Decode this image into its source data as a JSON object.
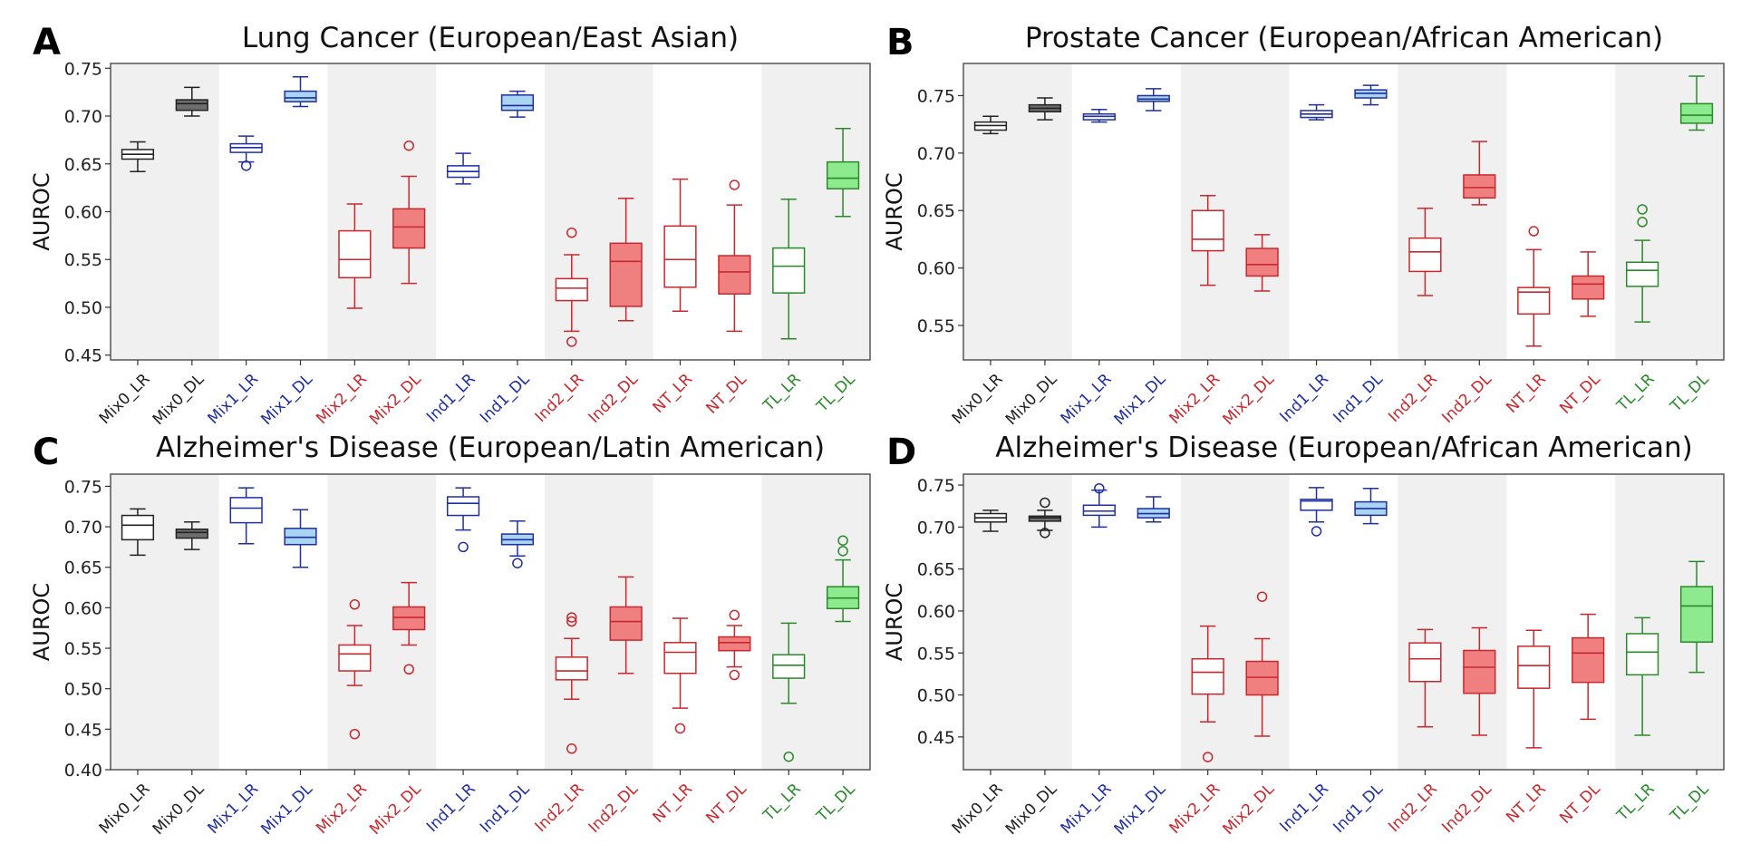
{
  "figure": {
    "ylabel": "AUROC",
    "colors": {
      "band": "#f0f0f0",
      "black": "#222222",
      "black_fill": "#6e6e6e",
      "blue": "#1f2fa0",
      "blue_fill": "#a9d4f3",
      "red": "#c8282d",
      "red_fill": "#f08080",
      "green": "#2a8a2a",
      "green_fill": "#8eea8e"
    }
  },
  "chart_data": [
    {
      "type": "box",
      "panel": "A",
      "title": "Lung Cancer (European/East Asian)",
      "xlabel": "",
      "ylabel": "AUROC",
      "ylim": [
        0.445,
        0.755
      ],
      "yticks": [
        "0.45",
        "0.50",
        "0.55",
        "0.60",
        "0.65",
        "0.70",
        "0.75"
      ],
      "categories": [
        "Mix0_LR",
        "Mix0_DL",
        "Mix1_LR",
        "Mix1_DL",
        "Mix2_LR",
        "Mix2_DL",
        "Ind1_LR",
        "Ind1_DL",
        "Ind2_LR",
        "Ind2_DL",
        "NT_LR",
        "NT_DL",
        "TL_LR",
        "TL_DL"
      ],
      "category_colors": [
        "black",
        "black",
        "blue",
        "blue",
        "red",
        "red",
        "blue",
        "blue",
        "red",
        "red",
        "red",
        "red",
        "green",
        "green"
      ],
      "boxes": [
        {
          "low": 0.642,
          "q1": 0.655,
          "median": 0.66,
          "q3": 0.665,
          "high": 0.673,
          "outliers": []
        },
        {
          "low": 0.7,
          "q1": 0.706,
          "median": 0.713,
          "q3": 0.717,
          "high": 0.73,
          "outliers": []
        },
        {
          "low": 0.652,
          "q1": 0.662,
          "median": 0.667,
          "q3": 0.671,
          "high": 0.679,
          "outliers": [
            0.648
          ]
        },
        {
          "low": 0.71,
          "q1": 0.715,
          "median": 0.719,
          "q3": 0.726,
          "high": 0.741,
          "outliers": []
        },
        {
          "low": 0.499,
          "q1": 0.531,
          "median": 0.55,
          "q3": 0.58,
          "high": 0.608,
          "outliers": []
        },
        {
          "low": 0.525,
          "q1": 0.562,
          "median": 0.584,
          "q3": 0.603,
          "high": 0.637,
          "outliers": [
            0.669
          ]
        },
        {
          "low": 0.629,
          "q1": 0.636,
          "median": 0.642,
          "q3": 0.648,
          "high": 0.661,
          "outliers": []
        },
        {
          "low": 0.699,
          "q1": 0.706,
          "median": 0.711,
          "q3": 0.722,
          "high": 0.726,
          "outliers": []
        },
        {
          "low": 0.475,
          "q1": 0.507,
          "median": 0.52,
          "q3": 0.53,
          "high": 0.555,
          "outliers": [
            0.578,
            0.464
          ]
        },
        {
          "low": 0.486,
          "q1": 0.501,
          "median": 0.548,
          "q3": 0.567,
          "high": 0.614,
          "outliers": []
        },
        {
          "low": 0.496,
          "q1": 0.521,
          "median": 0.55,
          "q3": 0.585,
          "high": 0.634,
          "outliers": []
        },
        {
          "low": 0.475,
          "q1": 0.514,
          "median": 0.537,
          "q3": 0.554,
          "high": 0.607,
          "outliers": [
            0.628
          ]
        },
        {
          "low": 0.467,
          "q1": 0.515,
          "median": 0.543,
          "q3": 0.562,
          "high": 0.613,
          "outliers": []
        },
        {
          "low": 0.595,
          "q1": 0.624,
          "median": 0.635,
          "q3": 0.652,
          "high": 0.687,
          "outliers": []
        }
      ],
      "filled": [
        false,
        true,
        false,
        true,
        false,
        true,
        false,
        true,
        false,
        true,
        false,
        true,
        false,
        true
      ],
      "grid": false
    },
    {
      "type": "box",
      "panel": "B",
      "title": "Prostate Cancer (European/African American)",
      "xlabel": "",
      "ylabel": "AUROC",
      "ylim": [
        0.52,
        0.778
      ],
      "yticks": [
        "0.55",
        "0.60",
        "0.65",
        "0.70",
        "0.75"
      ],
      "categories": [
        "Mix0_LR",
        "Mix0_DL",
        "Mix1_LR",
        "Mix1_DL",
        "Mix2_LR",
        "Mix2_DL",
        "Ind1_LR",
        "Ind1_DL",
        "Ind2_LR",
        "Ind2_DL",
        "NT_LR",
        "NT_DL",
        "TL_LR",
        "TL_DL"
      ],
      "category_colors": [
        "black",
        "black",
        "blue",
        "blue",
        "red",
        "red",
        "blue",
        "blue",
        "red",
        "red",
        "red",
        "red",
        "green",
        "green"
      ],
      "boxes": [
        {
          "low": 0.717,
          "q1": 0.72,
          "median": 0.724,
          "q3": 0.727,
          "high": 0.732,
          "outliers": []
        },
        {
          "low": 0.729,
          "q1": 0.736,
          "median": 0.739,
          "q3": 0.742,
          "high": 0.748,
          "outliers": []
        },
        {
          "low": 0.727,
          "q1": 0.729,
          "median": 0.732,
          "q3": 0.734,
          "high": 0.738,
          "outliers": []
        },
        {
          "low": 0.737,
          "q1": 0.745,
          "median": 0.747,
          "q3": 0.75,
          "high": 0.756,
          "outliers": []
        },
        {
          "low": 0.585,
          "q1": 0.615,
          "median": 0.625,
          "q3": 0.65,
          "high": 0.663,
          "outliers": []
        },
        {
          "low": 0.58,
          "q1": 0.593,
          "median": 0.603,
          "q3": 0.617,
          "high": 0.629,
          "outliers": []
        },
        {
          "low": 0.729,
          "q1": 0.731,
          "median": 0.734,
          "q3": 0.737,
          "high": 0.742,
          "outliers": []
        },
        {
          "low": 0.742,
          "q1": 0.748,
          "median": 0.752,
          "q3": 0.755,
          "high": 0.759,
          "outliers": []
        },
        {
          "low": 0.576,
          "q1": 0.597,
          "median": 0.614,
          "q3": 0.626,
          "high": 0.652,
          "outliers": []
        },
        {
          "low": 0.655,
          "q1": 0.661,
          "median": 0.67,
          "q3": 0.681,
          "high": 0.71,
          "outliers": []
        },
        {
          "low": 0.532,
          "q1": 0.56,
          "median": 0.579,
          "q3": 0.583,
          "high": 0.616,
          "outliers": [
            0.632
          ]
        },
        {
          "low": 0.558,
          "q1": 0.573,
          "median": 0.586,
          "q3": 0.593,
          "high": 0.614,
          "outliers": []
        },
        {
          "low": 0.553,
          "q1": 0.584,
          "median": 0.598,
          "q3": 0.605,
          "high": 0.624,
          "outliers": [
            0.64,
            0.651
          ]
        },
        {
          "low": 0.72,
          "q1": 0.726,
          "median": 0.733,
          "q3": 0.743,
          "high": 0.767,
          "outliers": []
        }
      ],
      "filled": [
        false,
        true,
        false,
        true,
        false,
        true,
        false,
        true,
        false,
        true,
        false,
        true,
        false,
        true
      ],
      "grid": false
    },
    {
      "type": "box",
      "panel": "C",
      "title": "Alzheimer's Disease (European/Latin American)",
      "xlabel": "",
      "ylabel": "AUROC",
      "ylim": [
        0.4,
        0.765
      ],
      "yticks": [
        "0.40",
        "0.45",
        "0.50",
        "0.55",
        "0.60",
        "0.65",
        "0.70",
        "0.75"
      ],
      "categories": [
        "Mix0_LR",
        "Mix0_DL",
        "Mix1_LR",
        "Mix1_DL",
        "Mix2_LR",
        "Mix2_DL",
        "Ind1_LR",
        "Ind1_DL",
        "Ind2_LR",
        "Ind2_DL",
        "NT_LR",
        "NT_DL",
        "TL_LR",
        "TL_DL"
      ],
      "category_colors": [
        "black",
        "black",
        "blue",
        "blue",
        "red",
        "red",
        "blue",
        "blue",
        "red",
        "red",
        "red",
        "red",
        "green",
        "green"
      ],
      "boxes": [
        {
          "low": 0.665,
          "q1": 0.684,
          "median": 0.702,
          "q3": 0.714,
          "high": 0.722,
          "outliers": []
        },
        {
          "low": 0.672,
          "q1": 0.686,
          "median": 0.693,
          "q3": 0.697,
          "high": 0.706,
          "outliers": []
        },
        {
          "low": 0.679,
          "q1": 0.705,
          "median": 0.723,
          "q3": 0.736,
          "high": 0.748,
          "outliers": []
        },
        {
          "low": 0.65,
          "q1": 0.678,
          "median": 0.687,
          "q3": 0.698,
          "high": 0.721,
          "outliers": []
        },
        {
          "low": 0.504,
          "q1": 0.522,
          "median": 0.543,
          "q3": 0.554,
          "high": 0.578,
          "outliers": [
            0.604,
            0.444
          ]
        },
        {
          "low": 0.554,
          "q1": 0.573,
          "median": 0.588,
          "q3": 0.601,
          "high": 0.631,
          "outliers": [
            0.524
          ]
        },
        {
          "low": 0.696,
          "q1": 0.714,
          "median": 0.729,
          "q3": 0.737,
          "high": 0.748,
          "outliers": [
            0.675
          ]
        },
        {
          "low": 0.664,
          "q1": 0.678,
          "median": 0.684,
          "q3": 0.691,
          "high": 0.707,
          "outliers": [
            0.655
          ]
        },
        {
          "low": 0.487,
          "q1": 0.511,
          "median": 0.522,
          "q3": 0.539,
          "high": 0.562,
          "outliers": [
            0.588,
            0.583,
            0.426
          ]
        },
        {
          "low": 0.519,
          "q1": 0.56,
          "median": 0.583,
          "q3": 0.601,
          "high": 0.638,
          "outliers": []
        },
        {
          "low": 0.476,
          "q1": 0.519,
          "median": 0.545,
          "q3": 0.557,
          "high": 0.587,
          "outliers": [
            0.451
          ]
        },
        {
          "low": 0.527,
          "q1": 0.547,
          "median": 0.557,
          "q3": 0.564,
          "high": 0.578,
          "outliers": [
            0.591,
            0.517
          ]
        },
        {
          "low": 0.482,
          "q1": 0.513,
          "median": 0.529,
          "q3": 0.542,
          "high": 0.581,
          "outliers": [
            0.416
          ]
        },
        {
          "low": 0.583,
          "q1": 0.599,
          "median": 0.612,
          "q3": 0.626,
          "high": 0.659,
          "outliers": [
            0.67,
            0.683
          ]
        }
      ],
      "filled": [
        false,
        true,
        false,
        true,
        false,
        true,
        false,
        true,
        false,
        true,
        false,
        true,
        false,
        true
      ],
      "grid": false
    },
    {
      "type": "box",
      "panel": "D",
      "title": "Alzheimer's Disease (European/African American)",
      "xlabel": "",
      "ylabel": "AUROC",
      "ylim": [
        0.411,
        0.763
      ],
      "yticks": [
        "0.45",
        "0.50",
        "0.55",
        "0.60",
        "0.65",
        "0.70",
        "0.75"
      ],
      "categories": [
        "Mix0_LR",
        "Mix0_DL",
        "Mix1_LR",
        "Mix1_DL",
        "Mix2_LR",
        "Mix2_DL",
        "Ind1_LR",
        "Ind1_DL",
        "Ind2_LR",
        "Ind2_DL",
        "NT_LR",
        "NT_DL",
        "TL_LR",
        "TL_DL"
      ],
      "category_colors": [
        "black",
        "black",
        "blue",
        "blue",
        "red",
        "red",
        "blue",
        "blue",
        "red",
        "red",
        "red",
        "red",
        "green",
        "green"
      ],
      "boxes": [
        {
          "low": 0.695,
          "q1": 0.706,
          "median": 0.711,
          "q3": 0.716,
          "high": 0.72,
          "outliers": []
        },
        {
          "low": 0.696,
          "q1": 0.707,
          "median": 0.711,
          "q3": 0.713,
          "high": 0.72,
          "outliers": [
            0.729,
            0.693
          ]
        },
        {
          "low": 0.7,
          "q1": 0.714,
          "median": 0.719,
          "q3": 0.726,
          "high": 0.744,
          "outliers": [
            0.746
          ]
        },
        {
          "low": 0.706,
          "q1": 0.711,
          "median": 0.716,
          "q3": 0.722,
          "high": 0.736,
          "outliers": []
        },
        {
          "low": 0.468,
          "q1": 0.501,
          "median": 0.527,
          "q3": 0.543,
          "high": 0.582,
          "outliers": [
            0.426
          ]
        },
        {
          "low": 0.451,
          "q1": 0.5,
          "median": 0.521,
          "q3": 0.54,
          "high": 0.567,
          "outliers": [
            0.617
          ]
        },
        {
          "low": 0.706,
          "q1": 0.72,
          "median": 0.731,
          "q3": 0.733,
          "high": 0.747,
          "outliers": [
            0.695
          ]
        },
        {
          "low": 0.704,
          "q1": 0.714,
          "median": 0.722,
          "q3": 0.73,
          "high": 0.746,
          "outliers": []
        },
        {
          "low": 0.462,
          "q1": 0.516,
          "median": 0.543,
          "q3": 0.562,
          "high": 0.578,
          "outliers": []
        },
        {
          "low": 0.452,
          "q1": 0.502,
          "median": 0.533,
          "q3": 0.553,
          "high": 0.58,
          "outliers": []
        },
        {
          "low": 0.437,
          "q1": 0.508,
          "median": 0.535,
          "q3": 0.558,
          "high": 0.577,
          "outliers": []
        },
        {
          "low": 0.471,
          "q1": 0.515,
          "median": 0.55,
          "q3": 0.568,
          "high": 0.596,
          "outliers": []
        },
        {
          "low": 0.452,
          "q1": 0.524,
          "median": 0.551,
          "q3": 0.573,
          "high": 0.592,
          "outliers": []
        },
        {
          "low": 0.527,
          "q1": 0.563,
          "median": 0.606,
          "q3": 0.629,
          "high": 0.659,
          "outliers": []
        }
      ],
      "filled": [
        false,
        true,
        false,
        true,
        false,
        true,
        false,
        true,
        false,
        true,
        false,
        true,
        false,
        true
      ],
      "grid": false
    }
  ]
}
